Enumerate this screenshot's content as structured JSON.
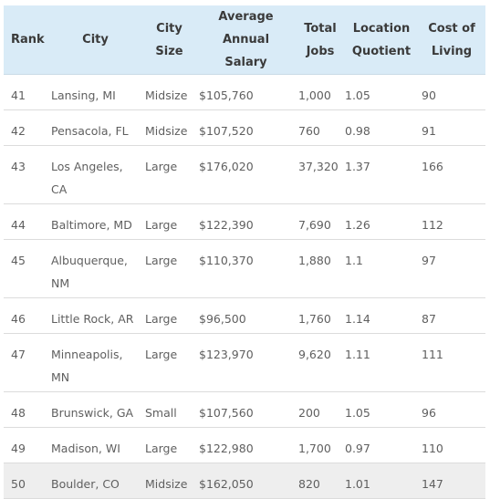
{
  "table": {
    "headers": {
      "rank": [
        "Rank"
      ],
      "city": [
        "City"
      ],
      "size": [
        "City",
        "Size"
      ],
      "salary": [
        "Average",
        "Annual Salary"
      ],
      "jobs": [
        "Total",
        "Jobs"
      ],
      "lq": [
        "Location",
        "Quotient"
      ],
      "col": [
        "Cost of",
        "Living"
      ]
    },
    "rows": [
      {
        "rank": "41",
        "city": "Lansing, MI",
        "size": "Midsize",
        "salary": "$105,760",
        "jobs": "1,000",
        "lq": "1.05",
        "col": "90"
      },
      {
        "rank": "42",
        "city": "Pensacola, FL",
        "size": "Midsize",
        "salary": "$107,520",
        "jobs": "760",
        "lq": "0.98",
        "col": "91"
      },
      {
        "rank": "43",
        "city": "Los Angeles, CA",
        "size": "Large",
        "salary": "$176,020",
        "jobs": "37,320",
        "lq": "1.37",
        "col": "166"
      },
      {
        "rank": "44",
        "city": "Baltimore, MD",
        "size": "Large",
        "salary": "$122,390",
        "jobs": "7,690",
        "lq": "1.26",
        "col": "112"
      },
      {
        "rank": "45",
        "city": "Albuquerque, NM",
        "size": "Large",
        "salary": "$110,370",
        "jobs": "1,880",
        "lq": "1.1",
        "col": "97"
      },
      {
        "rank": "46",
        "city": "Little Rock, AR",
        "size": "Large",
        "salary": "$96,500",
        "jobs": "1,760",
        "lq": "1.14",
        "col": "87"
      },
      {
        "rank": "47",
        "city": "Minneapolis, MN",
        "size": "Large",
        "salary": "$123,970",
        "jobs": "9,620",
        "lq": "1.11",
        "col": "111"
      },
      {
        "rank": "48",
        "city": "Brunswick, GA",
        "size": "Small",
        "salary": "$107,560",
        "jobs": "200",
        "lq": "1.05",
        "col": "96"
      },
      {
        "rank": "49",
        "city": "Madison, WI",
        "size": "Large",
        "salary": "$122,980",
        "jobs": "1,700",
        "lq": "0.97",
        "col": "110"
      },
      {
        "rank": "50",
        "city": "Boulder, CO",
        "size": "Midsize",
        "salary": "$162,050",
        "jobs": "820",
        "lq": "1.01",
        "col": "147"
      }
    ]
  }
}
